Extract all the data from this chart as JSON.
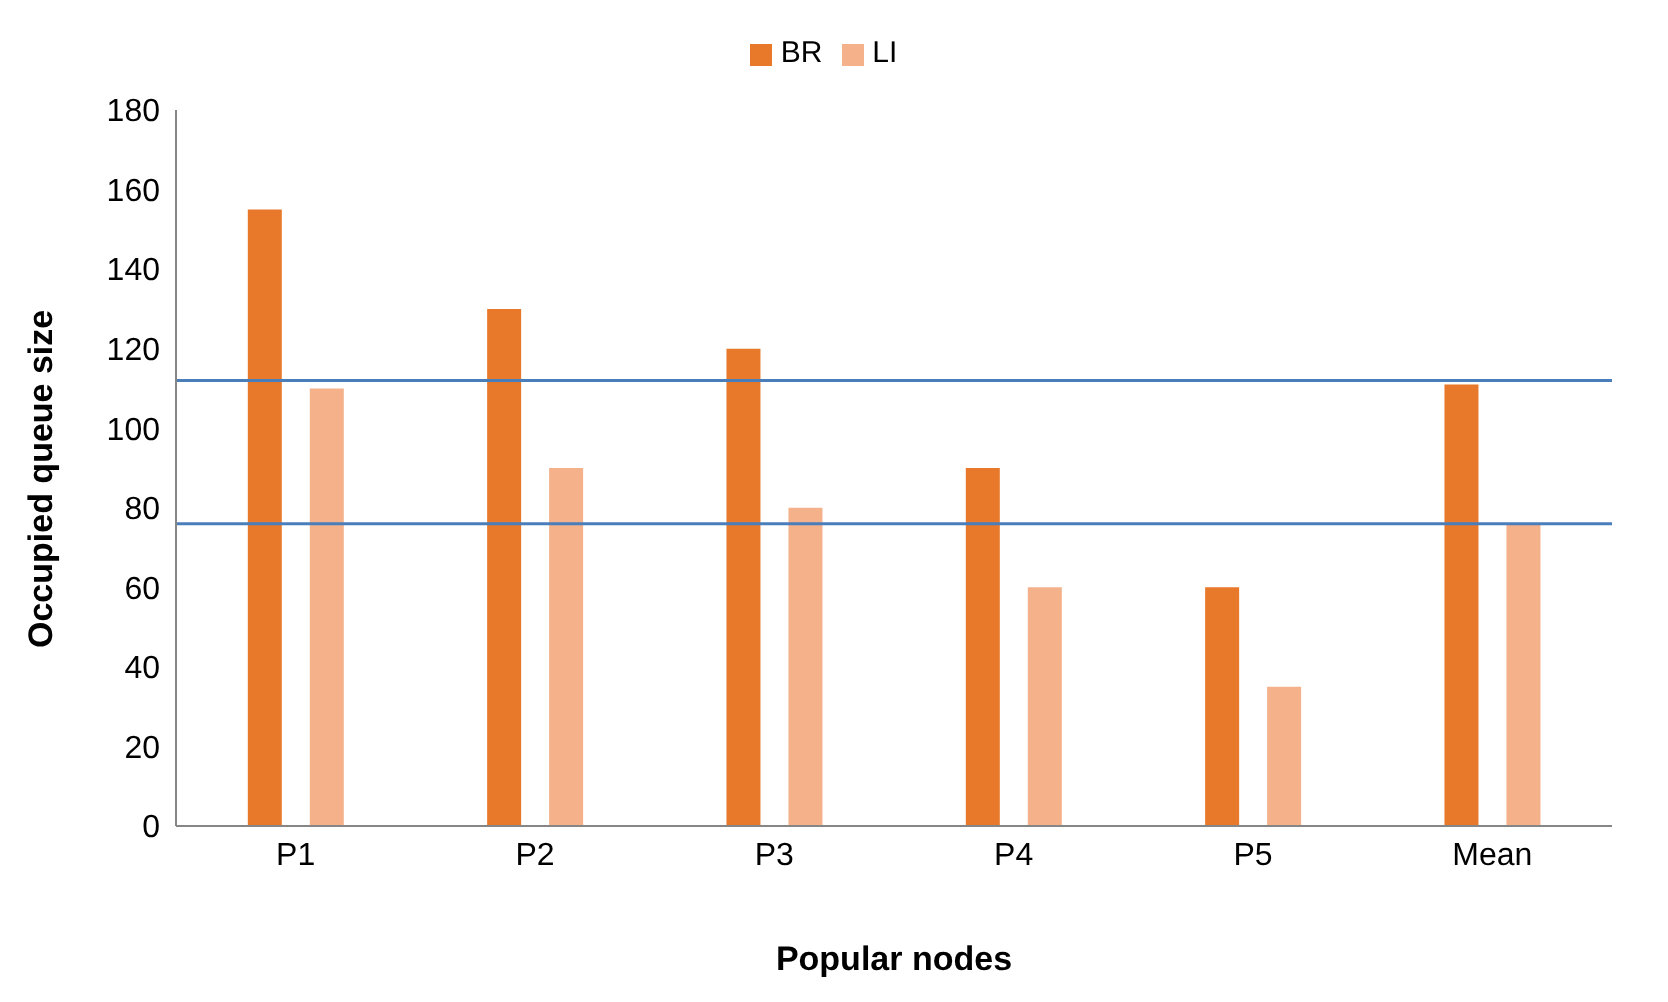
{
  "chart_data": {
    "type": "bar",
    "xlabel": "Popular nodes",
    "ylabel": "Occupied queue size",
    "categories": [
      "P1",
      "P2",
      "P3",
      "P4",
      "P5",
      "Mean"
    ],
    "series": [
      {
        "name": "BR",
        "color": "#e8792a",
        "values": [
          155,
          130,
          120,
          90,
          60,
          111
        ]
      },
      {
        "name": "LI",
        "color": "#f4b18a",
        "values": [
          110,
          90,
          80,
          60,
          35,
          76
        ]
      }
    ],
    "ylim": [
      0,
      180
    ],
    "yticks": [
      0,
      20,
      40,
      60,
      80,
      100,
      120,
      140,
      160,
      180
    ],
    "ref_lines": [
      {
        "axis": "y",
        "value": 112,
        "color": "#4a7ebb"
      },
      {
        "axis": "y",
        "value": 76,
        "color": "#4a7ebb"
      }
    ],
    "grid": false,
    "legend": "top"
  }
}
